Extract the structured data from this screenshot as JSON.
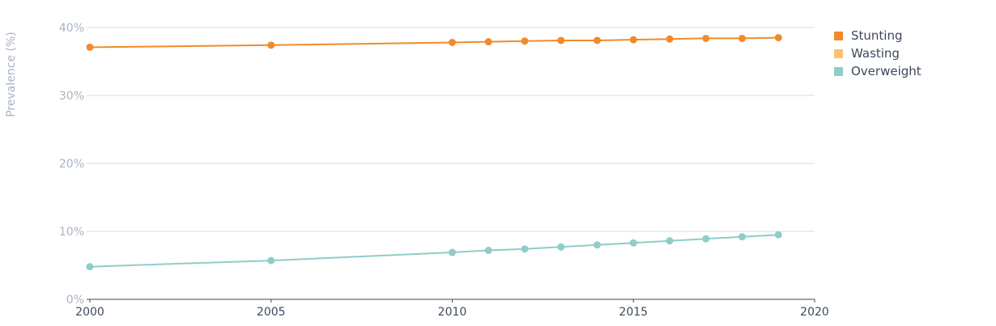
{
  "chart_data": {
    "type": "line",
    "xlabel": "",
    "ylabel": "Prevalence (%)",
    "xlim": [
      2000,
      2020
    ],
    "ylim": [
      0,
      40
    ],
    "x_ticks": [
      "2000",
      "2005",
      "2010",
      "2015",
      "2020"
    ],
    "y_ticks": [
      "0%",
      "10%",
      "20%",
      "30%",
      "40%"
    ],
    "grid": "horizontal",
    "legend_position": "top-right",
    "series": [
      {
        "name": "Stunting",
        "color": "#f28a2b",
        "x": [
          2000,
          2005,
          2010,
          2011,
          2012,
          2013,
          2014,
          2015,
          2016,
          2017,
          2018,
          2019
        ],
        "values": [
          37.1,
          37.4,
          37.8,
          37.9,
          38.0,
          38.1,
          38.1,
          38.2,
          38.3,
          38.4,
          38.4,
          38.5
        ]
      },
      {
        "name": "Wasting",
        "color": "#fbbf76",
        "x": [],
        "values": []
      },
      {
        "name": "Overweight",
        "color": "#8ecdc9",
        "x": [
          2000,
          2005,
          2010,
          2011,
          2012,
          2013,
          2014,
          2015,
          2016,
          2017,
          2018,
          2019
        ],
        "values": [
          4.8,
          5.7,
          6.9,
          7.2,
          7.4,
          7.7,
          8.0,
          8.3,
          8.6,
          8.9,
          9.2,
          9.5
        ]
      }
    ]
  }
}
